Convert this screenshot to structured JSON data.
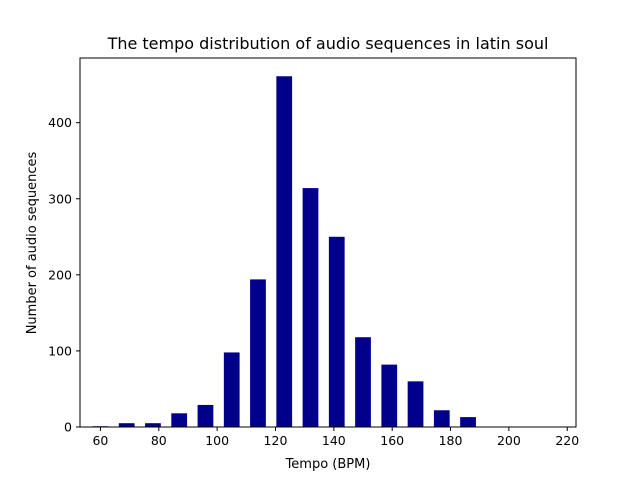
{
  "chart_data": {
    "type": "bar",
    "title": "The tempo distribution of audio sequences in latin soul",
    "xlabel": "Tempo (BPM)",
    "ylabel": "Number of audio sequences",
    "bar_color": "#00008b",
    "x_ticks": [
      60,
      80,
      100,
      120,
      140,
      160,
      180,
      200,
      220
    ],
    "y_ticks": [
      0,
      100,
      200,
      300,
      400
    ],
    "xlim": [
      53,
      223
    ],
    "ylim": [
      0,
      485
    ],
    "bars": [
      {
        "x": 60,
        "value": 1
      },
      {
        "x": 69,
        "value": 5
      },
      {
        "x": 78,
        "value": 5
      },
      {
        "x": 87,
        "value": 18
      },
      {
        "x": 96,
        "value": 29
      },
      {
        "x": 105,
        "value": 98
      },
      {
        "x": 114,
        "value": 194
      },
      {
        "x": 123,
        "value": 461
      },
      {
        "x": 132,
        "value": 314
      },
      {
        "x": 141,
        "value": 250
      },
      {
        "x": 150,
        "value": 118
      },
      {
        "x": 159,
        "value": 82
      },
      {
        "x": 168,
        "value": 60
      },
      {
        "x": 177,
        "value": 22
      },
      {
        "x": 186,
        "value": 13
      }
    ],
    "bar_width": 5.4,
    "grid": false,
    "legend": "none"
  }
}
